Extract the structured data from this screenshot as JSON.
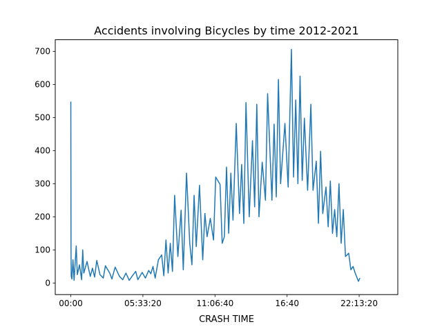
{
  "chart_data": {
    "type": "line",
    "title": "Accidents involving Bicycles by time 2012-2021",
    "xlabel": "CRASH TIME",
    "ylabel": "",
    "x_unit": "seconds since 00:00",
    "xlim": [
      -4319,
      90719
    ],
    "ylim": [
      -35,
      735
    ],
    "x_ticks": [
      {
        "value": 0,
        "label": "00:00"
      },
      {
        "value": 20000,
        "label": "05:33:20"
      },
      {
        "value": 40000,
        "label": "11:06:40"
      },
      {
        "value": 60000,
        "label": "16:40"
      },
      {
        "value": 80000,
        "label": "22:13:20"
      }
    ],
    "y_ticks": [
      0,
      100,
      200,
      300,
      400,
      500,
      600,
      700
    ],
    "grid": false,
    "legend": "none",
    "series": [
      {
        "color": "#1f77b4",
        "points": [
          [
            0,
            548
          ],
          [
            60,
            90
          ],
          [
            120,
            20
          ],
          [
            300,
            12
          ],
          [
            600,
            70
          ],
          [
            900,
            8
          ],
          [
            1500,
            112
          ],
          [
            1800,
            25
          ],
          [
            2400,
            55
          ],
          [
            3000,
            10
          ],
          [
            3300,
            100
          ],
          [
            3600,
            30
          ],
          [
            4500,
            65
          ],
          [
            5400,
            20
          ],
          [
            6000,
            45
          ],
          [
            6600,
            18
          ],
          [
            7200,
            68
          ],
          [
            8100,
            25
          ],
          [
            9000,
            15
          ],
          [
            9600,
            52
          ],
          [
            10800,
            30
          ],
          [
            11400,
            12
          ],
          [
            12300,
            48
          ],
          [
            13500,
            20
          ],
          [
            14400,
            10
          ],
          [
            15300,
            30
          ],
          [
            16200,
            8
          ],
          [
            17100,
            22
          ],
          [
            18000,
            35
          ],
          [
            18600,
            10
          ],
          [
            19800,
            32
          ],
          [
            20700,
            15
          ],
          [
            21600,
            38
          ],
          [
            22200,
            28
          ],
          [
            22800,
            50
          ],
          [
            23400,
            15
          ],
          [
            24300,
            70
          ],
          [
            25200,
            85
          ],
          [
            25800,
            22
          ],
          [
            26400,
            130
          ],
          [
            27000,
            30
          ],
          [
            27600,
            120
          ],
          [
            28200,
            35
          ],
          [
            28800,
            265
          ],
          [
            29700,
            80
          ],
          [
            30600,
            220
          ],
          [
            31200,
            40
          ],
          [
            32100,
            332
          ],
          [
            33000,
            120
          ],
          [
            33600,
            55
          ],
          [
            34200,
            265
          ],
          [
            34800,
            110
          ],
          [
            35700,
            295
          ],
          [
            36600,
            70
          ],
          [
            37200,
            210
          ],
          [
            37800,
            140
          ],
          [
            38700,
            195
          ],
          [
            39600,
            130
          ],
          [
            40200,
            320
          ],
          [
            41400,
            298
          ],
          [
            42000,
            120
          ],
          [
            42600,
            140
          ],
          [
            43200,
            350
          ],
          [
            43800,
            150
          ],
          [
            44400,
            332
          ],
          [
            45000,
            190
          ],
          [
            45900,
            482
          ],
          [
            46800,
            210
          ],
          [
            47400,
            358
          ],
          [
            48000,
            180
          ],
          [
            48600,
            545
          ],
          [
            49500,
            200
          ],
          [
            50400,
            430
          ],
          [
            51000,
            230
          ],
          [
            51600,
            540
          ],
          [
            52200,
            200
          ],
          [
            53100,
            365
          ],
          [
            54000,
            250
          ],
          [
            54600,
            572
          ],
          [
            55800,
            250
          ],
          [
            56400,
            480
          ],
          [
            57000,
            260
          ],
          [
            57600,
            615
          ],
          [
            58200,
            300
          ],
          [
            59400,
            482
          ],
          [
            60300,
            290
          ],
          [
            61200,
            706
          ],
          [
            61800,
            320
          ],
          [
            62400,
            553
          ],
          [
            63000,
            300
          ],
          [
            63600,
            625
          ],
          [
            64200,
            310
          ],
          [
            64800,
            498
          ],
          [
            65700,
            280
          ],
          [
            66600,
            540
          ],
          [
            67200,
            280
          ],
          [
            68100,
            368
          ],
          [
            68700,
            180
          ],
          [
            69300,
            398
          ],
          [
            69900,
            210
          ],
          [
            70800,
            290
          ],
          [
            71400,
            170
          ],
          [
            72000,
            308
          ],
          [
            72600,
            150
          ],
          [
            73200,
            222
          ],
          [
            73800,
            140
          ],
          [
            74400,
            300
          ],
          [
            75000,
            120
          ],
          [
            75600,
            222
          ],
          [
            76200,
            80
          ],
          [
            77100,
            90
          ],
          [
            77700,
            40
          ],
          [
            78300,
            50
          ],
          [
            78900,
            30
          ],
          [
            79800,
            5
          ],
          [
            80200,
            15
          ]
        ]
      }
    ]
  }
}
